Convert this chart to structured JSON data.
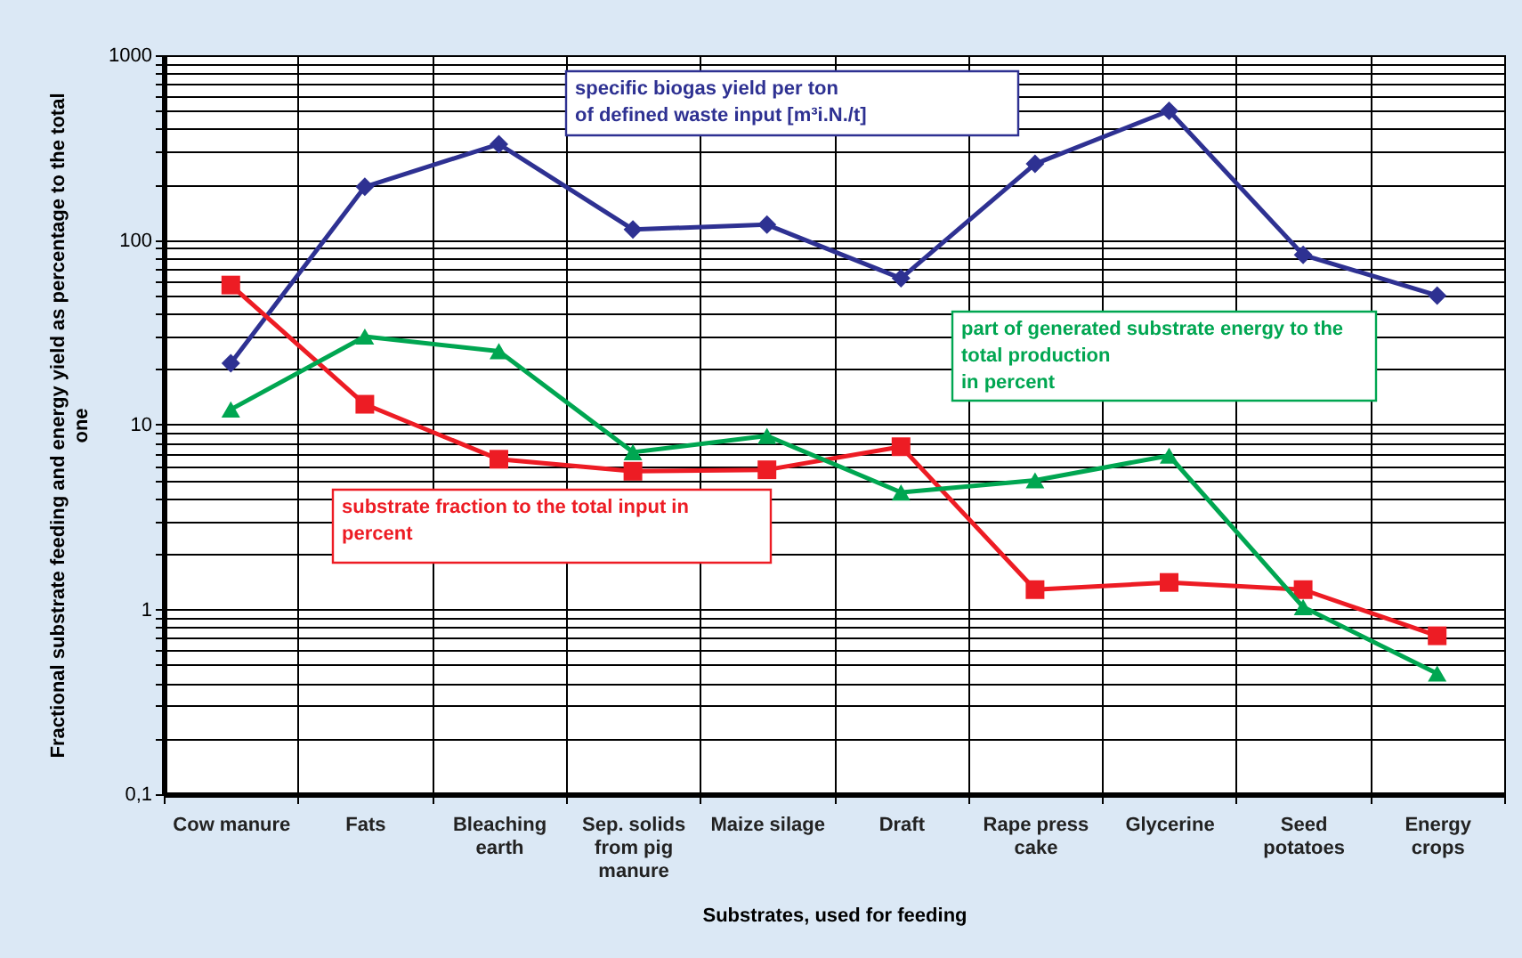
{
  "chart_data": {
    "type": "line",
    "xlabel": "Substrates, used for feeding",
    "ylabel": "Fractional substrate feeding and energy yield as percentage to the total one",
    "categories": [
      "Cow manure",
      "Fats",
      "Bleaching\nearth",
      "Sep. solids\nfrom pig\nmanure",
      "Maize silage",
      "Draft",
      "Rape press\ncake",
      "Glycerine",
      "Seed\npotatoes",
      "Energy\ncrops"
    ],
    "log": true,
    "grid": true,
    "ylim": [
      0.1,
      1000
    ],
    "yticks": [
      {
        "value": 0.1,
        "label": "0,1"
      },
      {
        "value": 0.2,
        "label": null
      },
      {
        "value": 0.3,
        "label": null
      },
      {
        "value": 0.4,
        "label": null
      },
      {
        "value": 0.5,
        "label": null
      },
      {
        "value": 0.6,
        "label": null
      },
      {
        "value": 0.7,
        "label": null
      },
      {
        "value": 0.8,
        "label": null
      },
      {
        "value": 0.9,
        "label": null
      },
      1,
      {
        "value": 2,
        "label": null
      },
      {
        "value": 3,
        "label": null
      },
      {
        "value": 4,
        "label": null
      },
      {
        "value": 5,
        "label": null
      },
      {
        "value": 6,
        "label": null
      },
      {
        "value": 7,
        "label": null
      },
      {
        "value": 8,
        "label": null
      },
      {
        "value": 9,
        "label": null
      },
      10,
      {
        "value": 20,
        "label": null
      },
      {
        "value": 30,
        "label": null
      },
      {
        "value": 40,
        "label": null
      },
      {
        "value": 50,
        "label": null
      },
      {
        "value": 60,
        "label": null
      },
      {
        "value": 70,
        "label": null
      },
      {
        "value": 80,
        "label": null
      },
      {
        "value": 90,
        "label": null
      },
      100,
      {
        "value": 200,
        "label": null
      },
      {
        "value": 300,
        "label": null
      },
      {
        "value": 400,
        "label": null
      },
      {
        "value": 500,
        "label": null
      },
      {
        "value": 600,
        "label": null
      },
      {
        "value": 700,
        "label": null
      },
      {
        "value": 800,
        "label": null
      },
      {
        "value": 900,
        "label": null
      },
      1000
    ],
    "series": [
      {
        "name": "specific biogas yield per ton\nof defined waste input  [m³i.N./t]",
        "color": "#2e3192",
        "marker": "diamond",
        "values": [
          21.5,
          194,
          330,
          114,
          121,
          62,
          258,
          500,
          83,
          50
        ]
      },
      {
        "name": "substrate fraction to the total input  in\npercent",
        "color": "#ed1c24",
        "marker": "square",
        "values": [
          57,
          12.9,
          6.5,
          5.6,
          5.7,
          7.6,
          1.28,
          1.4,
          1.28,
          0.72
        ]
      },
      {
        "name": "part of generated substrate energy to the\ntotal production\nin  percent",
        "color": "#00a651",
        "marker": "triangle",
        "values": [
          12.1,
          30,
          25,
          7.1,
          8.7,
          4.3,
          5,
          6.8,
          1.03,
          0.45
        ]
      }
    ]
  }
}
